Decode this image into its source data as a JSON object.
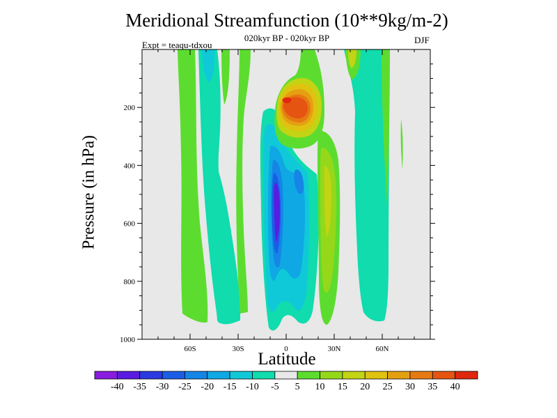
{
  "chart": {
    "title": "Meridional Streamfunction (10**9kg/m-2)",
    "subtitle": "020kyr BP - 020kyr BP",
    "left_label": "Expt = teaqu-tdxou",
    "right_label": "DJF",
    "xlabel": "Latitude",
    "ylabel": "Pressure (in hPa)"
  },
  "chart_data": {
    "type": "heatmap",
    "title": "Meridional Streamfunction (10**9kg/m-2)",
    "subtitle": "020kyr BP - 020kyr BP",
    "xlabel": "Latitude",
    "ylabel": "Pressure (in hPa)",
    "x_range_deg": [
      -90,
      90
    ],
    "y_range_hpa": [
      0,
      1000
    ],
    "x_ticks": [
      {
        "value": -60,
        "label": "60S"
      },
      {
        "value": -30,
        "label": "30S"
      },
      {
        "value": 0,
        "label": "0"
      },
      {
        "value": 30,
        "label": "30N"
      },
      {
        "value": 60,
        "label": "60N"
      }
    ],
    "y_ticks": [
      {
        "value": 200,
        "label": "200"
      },
      {
        "value": 400,
        "label": "400"
      },
      {
        "value": 600,
        "label": "600"
      },
      {
        "value": 800,
        "label": "800"
      },
      {
        "value": 1000,
        "label": "1000"
      }
    ],
    "levels": [
      -40,
      -35,
      -30,
      -25,
      -20,
      -15,
      -10,
      -5,
      5,
      10,
      15,
      20,
      25,
      30,
      35,
      40
    ],
    "level_labels": [
      "-40",
      "-35",
      "-30",
      "-25",
      "-20",
      "-15",
      "-10",
      "-5",
      "5",
      "10",
      "15",
      "20",
      "25",
      "30",
      "35",
      "40"
    ],
    "colors": [
      "#8a1ce0",
      "#5a1ce0",
      "#2a3ae0",
      "#1a5ee6",
      "#1585e6",
      "#0fa8e4",
      "#10c9d8",
      "#10dcae",
      "#e8e8e8",
      "#5ddc30",
      "#95d81a",
      "#c2d414",
      "#e0c210",
      "#e5a012",
      "#e67a12",
      "#e55410",
      "#e0280e"
    ],
    "background_color": "#e8e8e8",
    "features": [
      {
        "kind": "positive",
        "level": 5,
        "lat": [
          -54,
          -49
        ],
        "p": [
          15,
          980
        ]
      },
      {
        "kind": "negative",
        "level": -5,
        "lat": [
          -41,
          -36
        ],
        "p": [
          15,
          850
        ]
      },
      {
        "kind": "negative",
        "level": -5,
        "lat": [
          -38,
          -25
        ],
        "p": [
          340,
          960
        ]
      },
      {
        "kind": "positive",
        "level": 5,
        "lat": [
          -22,
          -16
        ],
        "p": [
          15,
          950
        ]
      },
      {
        "kind": "negative",
        "level": -10,
        "lat": [
          -12,
          15
        ],
        "p": [
          200,
          970
        ]
      },
      {
        "kind": "negative",
        "level": -40,
        "lat": [
          -6,
          -3
        ],
        "p": [
          400,
          820
        ]
      },
      {
        "kind": "negative",
        "level": -20,
        "lat": [
          6,
          10
        ],
        "p": [
          400,
          560
        ]
      },
      {
        "kind": "positive",
        "level": 10,
        "lat": [
          20,
          28
        ],
        "p": [
          300,
          960
        ]
      },
      {
        "kind": "positive",
        "level": 35,
        "lat": [
          4,
          16
        ],
        "p": [
          150,
          290
        ]
      },
      {
        "kind": "negative",
        "level": -5,
        "lat": [
          32,
          50
        ],
        "p": [
          15,
          960
        ]
      },
      {
        "kind": "positive",
        "level": 5,
        "lat": [
          53,
          57
        ],
        "p": [
          15,
          590
        ]
      },
      {
        "kind": "positive",
        "level": 5,
        "lat": [
          70,
          71
        ],
        "p": [
          320,
          410
        ]
      }
    ]
  }
}
